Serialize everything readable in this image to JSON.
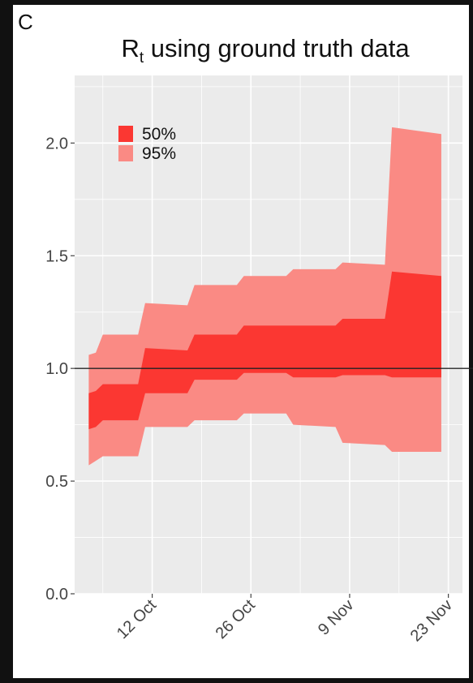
{
  "panel_label": "C",
  "title": {
    "main": "R",
    "sub": "t",
    "rest": " using ground truth data"
  },
  "chart_data": {
    "type": "area",
    "title": "Rt using ground truth data",
    "xlabel": "",
    "ylabel": "",
    "ylim": [
      0,
      2.3
    ],
    "xlim": [
      "2020-10-01",
      "2020-11-25"
    ],
    "grid": true,
    "legend_position": "top-left",
    "y_ticks": [
      0.0,
      0.5,
      1.0,
      1.5,
      2.0
    ],
    "y_tick_labels": [
      "0.0",
      "0.5",
      "1.0",
      "1.5",
      "2.0"
    ],
    "x_ticks": [
      "2020-10-12",
      "2020-10-26",
      "2020-11-09",
      "2020-11-23"
    ],
    "x_tick_labels": [
      "12 Oct",
      "26 Oct",
      "9 Nov",
      "23 Nov"
    ],
    "reference_line": 1.0,
    "x": [
      "2020-10-03",
      "2020-10-04",
      "2020-10-05",
      "2020-10-10",
      "2020-10-11",
      "2020-10-17",
      "2020-10-18",
      "2020-10-24",
      "2020-10-25",
      "2020-10-31",
      "2020-11-01",
      "2020-11-07",
      "2020-11-08",
      "2020-11-14",
      "2020-11-15",
      "2020-11-22"
    ],
    "series": [
      {
        "name": "95%",
        "color": "#fa8a84",
        "lower": [
          0.57,
          0.59,
          0.61,
          0.61,
          0.74,
          0.74,
          0.77,
          0.77,
          0.8,
          0.8,
          0.75,
          0.74,
          0.67,
          0.66,
          0.63,
          0.63
        ],
        "upper": [
          1.06,
          1.07,
          1.15,
          1.15,
          1.29,
          1.28,
          1.37,
          1.37,
          1.41,
          1.41,
          1.44,
          1.44,
          1.47,
          1.46,
          2.07,
          2.04
        ]
      },
      {
        "name": "50%",
        "color": "#fb3732",
        "lower": [
          0.73,
          0.74,
          0.77,
          0.77,
          0.89,
          0.89,
          0.95,
          0.95,
          0.98,
          0.98,
          0.96,
          0.96,
          0.97,
          0.97,
          0.96,
          0.96
        ],
        "upper": [
          0.89,
          0.9,
          0.93,
          0.93,
          1.09,
          1.08,
          1.15,
          1.15,
          1.19,
          1.19,
          1.19,
          1.19,
          1.22,
          1.22,
          1.43,
          1.41
        ]
      }
    ]
  },
  "colors": {
    "panel_bg": "#ebebeb",
    "grid": "#ffffff",
    "ref_line": "#222222"
  }
}
